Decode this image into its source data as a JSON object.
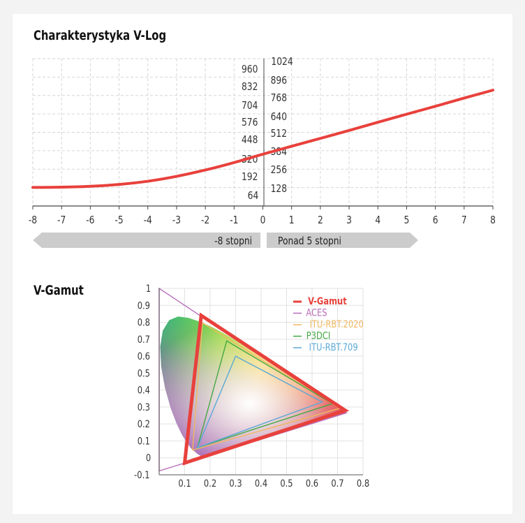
{
  "chart_data": [
    {
      "type": "line",
      "title": "Charakterystyka V-Log",
      "x_ticks": [
        -8,
        -7,
        -6,
        -5,
        -4,
        -3,
        -2,
        -1,
        0,
        1,
        2,
        3,
        4,
        5,
        6,
        7,
        8
      ],
      "y_left_ticks": [
        960,
        832,
        704,
        576,
        448,
        320,
        192,
        64
      ],
      "y_right_ticks": [
        1024,
        896,
        768,
        640,
        512,
        384,
        256,
        128
      ],
      "xlim": [
        -8,
        8
      ],
      "ylim": [
        0,
        1024
      ],
      "grid": true,
      "series": [
        {
          "color": "#e8413c",
          "x": [
            -8,
            -7,
            -6,
            -5,
            -4,
            -3,
            -2,
            -1,
            0,
            1,
            2,
            3,
            4,
            5,
            6,
            7,
            8
          ],
          "y": [
            129,
            131,
            137,
            150,
            172,
            206,
            250,
            302,
            360,
            415,
            470,
            525,
            582,
            638,
            693,
            750,
            805
          ]
        }
      ],
      "arrow_left_label": "-8 stopni",
      "arrow_right_label": "Ponad 5 stopni",
      "arrow_color": "#cccccc"
    },
    {
      "type": "scatter",
      "title": "V-Gamut",
      "x_ticks": [
        0.1,
        0.2,
        0.3,
        0.4,
        0.5,
        0.6,
        0.7,
        0.8
      ],
      "y_ticks": [
        1,
        0.9,
        0.8,
        0.7,
        0.6,
        0.5,
        0.4,
        0.3,
        0.2,
        0.1,
        0,
        -0.1
      ],
      "xlim": [
        0,
        0.8
      ],
      "ylim": [
        -0.1,
        1
      ],
      "grid": true,
      "legend_position": "top-right",
      "series": [
        {
          "name": "V-Gamut",
          "color": "#e8413c",
          "points": [
            [
              0.73,
              0.28
            ],
            [
              0.165,
              0.84
            ],
            [
              0.1,
              -0.03
            ]
          ]
        },
        {
          "name": "ACES",
          "color": "#b86db8",
          "points": [
            [
              0.7347,
              0.2653
            ],
            [
              0.0,
              1.0
            ],
            [
              0.0001,
              -0.077
            ]
          ]
        },
        {
          "name": "ITU-RBT.2020",
          "color": "#f0b860",
          "points": [
            [
              0.708,
              0.292
            ],
            [
              0.17,
              0.797
            ],
            [
              0.131,
              0.046
            ]
          ]
        },
        {
          "name": "P3DCI",
          "color": "#44a844",
          "points": [
            [
              0.68,
              0.32
            ],
            [
              0.265,
              0.69
            ],
            [
              0.15,
              0.06
            ]
          ]
        },
        {
          "name": "ITU-RBT.709",
          "color": "#5aa9d6",
          "points": [
            [
              0.64,
              0.33
            ],
            [
              0.3,
              0.6
            ],
            [
              0.15,
              0.06
            ]
          ]
        }
      ]
    }
  ]
}
